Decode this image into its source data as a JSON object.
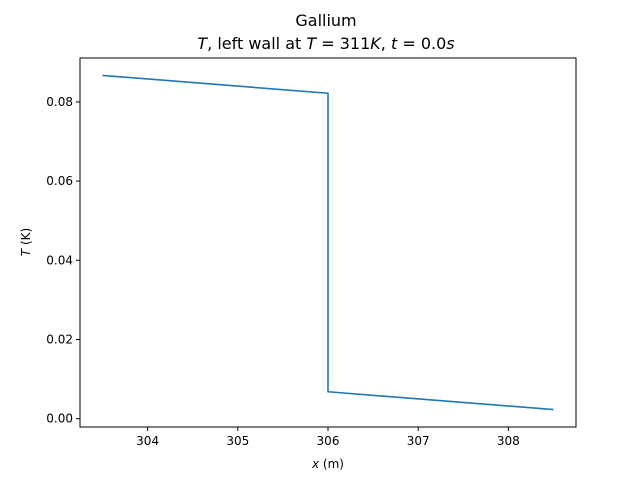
{
  "chart_data": {
    "type": "line",
    "title": "Gallium",
    "subtitle": "T, left wall at T = 311K, t = 0.0s",
    "xlabel": "x (m)",
    "ylabel": "T (K)",
    "xlim": [
      303.25,
      308.75
    ],
    "ylim": [
      -0.0021,
      0.0911
    ],
    "x_ticks": [
      304,
      305,
      306,
      307,
      308
    ],
    "y_ticks": [
      0.0,
      0.02,
      0.04,
      0.06,
      0.08
    ],
    "x_tick_labels": [
      "304",
      "305",
      "306",
      "307",
      "308"
    ],
    "y_tick_labels": [
      "0.00",
      "0.02",
      "0.04",
      "0.06",
      "0.08"
    ],
    "grid": false,
    "color": "#1f77b4",
    "series": [
      {
        "x": [
          303.5,
          306.0,
          306.0,
          308.5
        ],
        "y": [
          0.0867,
          0.0822,
          0.0068,
          0.0023
        ]
      }
    ]
  }
}
